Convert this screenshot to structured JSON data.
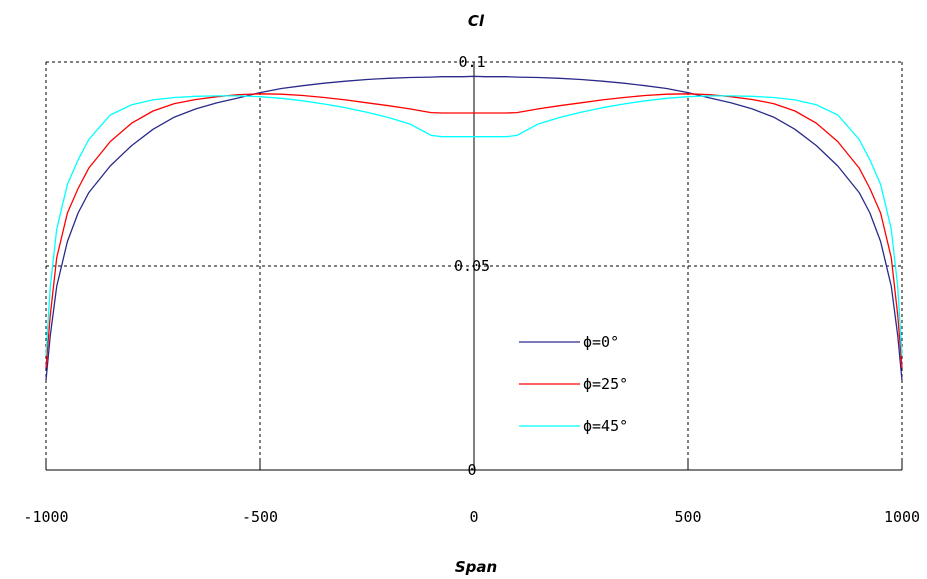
{
  "chart_data": {
    "type": "line",
    "title": "",
    "xlabel": "Span",
    "ylabel": "Cl",
    "xlim": [
      -1000,
      1000
    ],
    "ylim": [
      0,
      0.1
    ],
    "grid": true,
    "legend_placement": "center-right",
    "x_ticks": [
      "-1000",
      "-500",
      "0",
      "500",
      "1000"
    ],
    "y_ticks": [
      "0",
      "0.05",
      "0.1"
    ],
    "x": [
      -1000,
      -990,
      -975,
      -950,
      -925,
      -900,
      -850,
      -800,
      -750,
      -700,
      -650,
      -600,
      -550,
      -500,
      -450,
      -400,
      -350,
      -300,
      -250,
      -200,
      -150,
      -100,
      -75,
      -50,
      -25,
      0,
      25,
      50,
      75,
      100,
      150,
      200,
      250,
      300,
      350,
      400,
      450,
      500,
      550,
      600,
      650,
      700,
      750,
      800,
      850,
      900,
      925,
      950,
      975,
      990,
      1000
    ],
    "series": [
      {
        "name": "ϕ=0°",
        "color": "#2a2a8a",
        "values": [
          0.022,
          0.033,
          0.045,
          0.056,
          0.063,
          0.068,
          0.0745,
          0.0795,
          0.0835,
          0.0865,
          0.0885,
          0.09,
          0.0912,
          0.0925,
          0.0935,
          0.0942,
          0.0948,
          0.0953,
          0.0957,
          0.096,
          0.0962,
          0.0963,
          0.0964,
          0.0964,
          0.0964,
          0.0965,
          0.0964,
          0.0964,
          0.0964,
          0.0963,
          0.0962,
          0.096,
          0.0957,
          0.0953,
          0.0948,
          0.0942,
          0.0935,
          0.0925,
          0.0912,
          0.09,
          0.0885,
          0.0865,
          0.0835,
          0.0795,
          0.0745,
          0.068,
          0.063,
          0.056,
          0.045,
          0.033,
          0.022
        ]
      },
      {
        "name": "ϕ=25°",
        "color": "#ff0000",
        "values": [
          0.025,
          0.038,
          0.052,
          0.063,
          0.069,
          0.074,
          0.0805,
          0.085,
          0.088,
          0.0898,
          0.0908,
          0.0915,
          0.092,
          0.0922,
          0.0921,
          0.0918,
          0.0913,
          0.0907,
          0.09,
          0.0893,
          0.0885,
          0.0876,
          0.0875,
          0.0875,
          0.0875,
          0.0875,
          0.0875,
          0.0875,
          0.0875,
          0.0876,
          0.0885,
          0.0893,
          0.09,
          0.0907,
          0.0913,
          0.0918,
          0.0921,
          0.0922,
          0.092,
          0.0915,
          0.0908,
          0.0898,
          0.088,
          0.085,
          0.0805,
          0.074,
          0.069,
          0.063,
          0.052,
          0.038,
          0.025
        ]
      },
      {
        "name": "ϕ=45°",
        "color": "#00ffff",
        "values": [
          0.028,
          0.045,
          0.059,
          0.07,
          0.076,
          0.081,
          0.087,
          0.0895,
          0.0907,
          0.0913,
          0.0916,
          0.0917,
          0.0917,
          0.0915,
          0.0911,
          0.0905,
          0.0897,
          0.0888,
          0.0877,
          0.0864,
          0.0848,
          0.082,
          0.0817,
          0.0817,
          0.0817,
          0.0817,
          0.0817,
          0.0817,
          0.0817,
          0.082,
          0.0848,
          0.0864,
          0.0877,
          0.0888,
          0.0897,
          0.0905,
          0.0911,
          0.0915,
          0.0917,
          0.0917,
          0.0916,
          0.0913,
          0.0907,
          0.0895,
          0.087,
          0.081,
          0.076,
          0.07,
          0.059,
          0.045,
          0.028
        ]
      }
    ]
  }
}
